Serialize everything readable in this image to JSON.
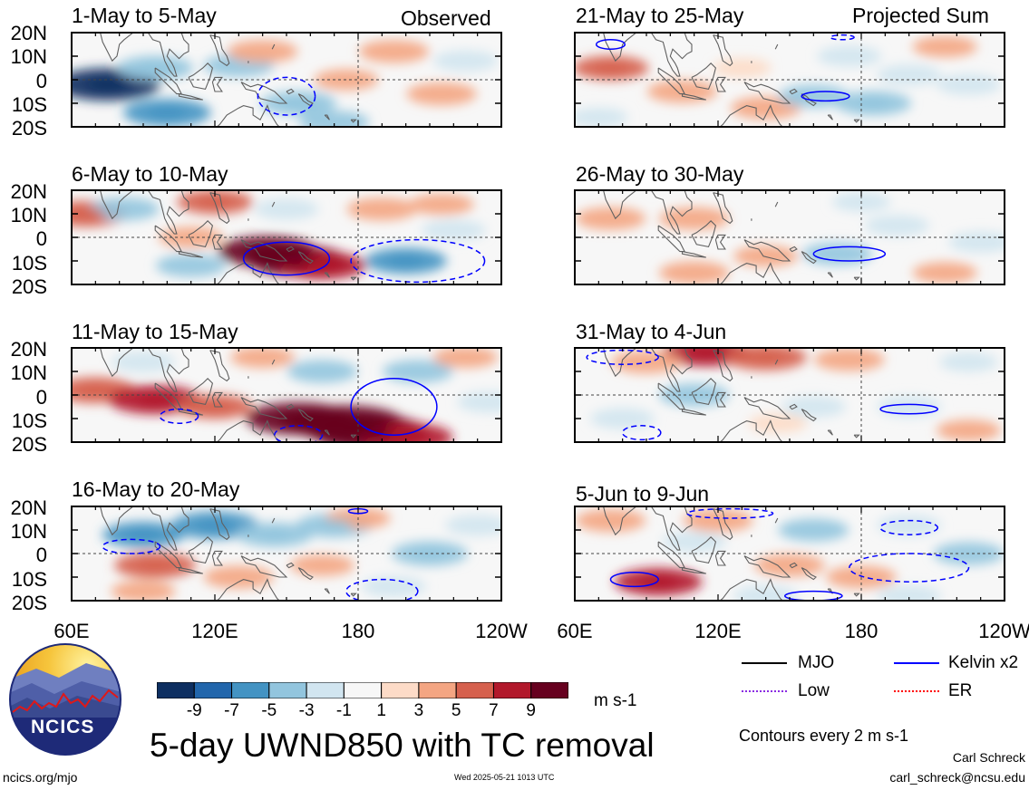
{
  "header": {
    "observed_label": "Observed",
    "projected_label": "Projected Sum"
  },
  "chart_data": {
    "type": "heatmap",
    "title": "5-day UWND850 with TC removal",
    "units": "m s-1",
    "lat_ticks": [
      "20N",
      "10N",
      "0",
      "10S",
      "20S"
    ],
    "lon_ticks": [
      "60E",
      "120E",
      "180",
      "120W"
    ],
    "lat_range": [
      -20,
      20
    ],
    "lon_range": [
      60,
      240
    ],
    "colorbar": {
      "labels": [
        "-9",
        "-7",
        "-5",
        "-3",
        "-1",
        "1",
        "3",
        "5",
        "7",
        "9"
      ],
      "colors": [
        "#0d2f61",
        "#2166ac",
        "#4393c3",
        "#92c5de",
        "#d1e5f0",
        "#f7f7f7",
        "#fddbc7",
        "#f4a582",
        "#d6604d",
        "#b2182b",
        "#67001f"
      ]
    },
    "panels": [
      {
        "period": "1-May to 5-May",
        "column": "observed",
        "anomalies": [
          [
            75,
            -2,
            -10
          ],
          [
            95,
            5,
            -5
          ],
          [
            100,
            -14,
            -7
          ],
          [
            155,
            -10,
            -5
          ],
          [
            130,
            6,
            -4
          ],
          [
            140,
            12,
            4
          ],
          [
            195,
            12,
            4
          ],
          [
            215,
            -6,
            4
          ],
          [
            225,
            8,
            -3
          ],
          [
            175,
            0,
            3
          ],
          [
            170,
            -18,
            -4
          ]
        ],
        "contours": [
          {
            "lon": 150,
            "lat": -7,
            "rx": 12,
            "ry": 8,
            "style": "dashed"
          }
        ]
      },
      {
        "period": "6-May to 10-May",
        "column": "observed",
        "anomalies": [
          [
            66,
            10,
            6
          ],
          [
            82,
            12,
            -4
          ],
          [
            110,
            0,
            3
          ],
          [
            142,
            -6,
            9
          ],
          [
            155,
            -10,
            9
          ],
          [
            165,
            -12,
            7
          ],
          [
            120,
            15,
            5
          ],
          [
            190,
            12,
            4
          ],
          [
            215,
            14,
            3
          ],
          [
            110,
            -12,
            -4
          ],
          [
            200,
            -10,
            -6
          ],
          [
            220,
            3,
            -3
          ],
          [
            150,
            12,
            -3
          ]
        ],
        "contours": [
          {
            "lon": 150,
            "lat": -9,
            "rx": 18,
            "ry": 7,
            "style": "solid"
          },
          {
            "lon": 205,
            "lat": -10,
            "rx": 28,
            "ry": 9,
            "style": "dashed"
          }
        ]
      },
      {
        "period": "11-May to 15-May",
        "column": "observed",
        "anomalies": [
          [
            70,
            2,
            6
          ],
          [
            95,
            -2,
            8
          ],
          [
            120,
            -5,
            5
          ],
          [
            155,
            -10,
            10
          ],
          [
            175,
            -12,
            12
          ],
          [
            185,
            -16,
            12
          ],
          [
            200,
            -18,
            8
          ],
          [
            165,
            10,
            -4
          ],
          [
            205,
            10,
            -4
          ],
          [
            90,
            14,
            -3
          ],
          [
            235,
            -3,
            -3
          ],
          [
            140,
            16,
            3
          ],
          [
            225,
            16,
            3
          ]
        ],
        "contours": [
          {
            "lon": 195,
            "lat": -5,
            "rx": 18,
            "ry": 12,
            "style": "solid"
          },
          {
            "lon": 105,
            "lat": -9,
            "rx": 8,
            "ry": 3,
            "style": "dashed"
          },
          {
            "lon": 155,
            "lat": -17,
            "rx": 10,
            "ry": 4,
            "style": "dashed"
          }
        ]
      },
      {
        "period": "16-May to 20-May",
        "column": "observed",
        "anomalies": [
          [
            90,
            8,
            -6
          ],
          [
            120,
            12,
            -7
          ],
          [
            145,
            8,
            -5
          ],
          [
            170,
            12,
            -5
          ],
          [
            210,
            0,
            -5
          ],
          [
            95,
            -5,
            6
          ],
          [
            130,
            -10,
            4
          ],
          [
            90,
            -16,
            3
          ],
          [
            180,
            15,
            3
          ],
          [
            165,
            -5,
            3
          ],
          [
            230,
            12,
            -3
          ],
          [
            195,
            -14,
            -3
          ]
        ],
        "contours": [
          {
            "lon": 85,
            "lat": 3,
            "rx": 12,
            "ry": 3,
            "style": "dashed"
          },
          {
            "lon": 180,
            "lat": 18,
            "rx": 4,
            "ry": 1,
            "style": "solid"
          },
          {
            "lon": 190,
            "lat": -16,
            "rx": 15,
            "ry": 5,
            "style": "dashed"
          }
        ]
      },
      {
        "period": "21-May to 25-May",
        "column": "projected",
        "anomalies": [
          [
            75,
            5,
            5
          ],
          [
            105,
            -5,
            4
          ],
          [
            140,
            -12,
            4
          ],
          [
            160,
            -7,
            -4
          ],
          [
            185,
            -10,
            -5
          ],
          [
            200,
            2,
            -3
          ],
          [
            225,
            -2,
            -3
          ],
          [
            175,
            10,
            -3
          ],
          [
            130,
            5,
            2
          ],
          [
            215,
            14,
            3
          ],
          [
            70,
            -16,
            -2
          ]
        ],
        "contours": [
          {
            "lon": 75,
            "lat": 15,
            "rx": 6,
            "ry": 2,
            "style": "solid"
          },
          {
            "lon": 165,
            "lat": -7,
            "rx": 10,
            "ry": 2,
            "style": "solid"
          },
          {
            "lon": 172,
            "lat": 18,
            "rx": 5,
            "ry": 1,
            "style": "dashed"
          }
        ]
      },
      {
        "period": "26-May to 30-May",
        "column": "projected",
        "anomalies": [
          [
            75,
            8,
            4
          ],
          [
            110,
            8,
            4
          ],
          [
            170,
            -7,
            -4
          ],
          [
            195,
            5,
            -3
          ],
          [
            230,
            -2,
            -3
          ],
          [
            140,
            -8,
            3
          ],
          [
            110,
            -15,
            4
          ],
          [
            215,
            -15,
            3
          ],
          [
            180,
            15,
            -2
          ]
        ],
        "contours": [
          {
            "lon": 175,
            "lat": -7,
            "rx": 15,
            "ry": 3,
            "style": "solid"
          }
        ]
      },
      {
        "period": "31-May to 4-Jun",
        "column": "projected",
        "anomalies": [
          [
            115,
            18,
            7
          ],
          [
            140,
            16,
            6
          ],
          [
            90,
            14,
            4
          ],
          [
            175,
            15,
            4
          ],
          [
            110,
            0,
            -4
          ],
          [
            160,
            -5,
            -3
          ],
          [
            200,
            -5,
            -3
          ],
          [
            80,
            -10,
            -3
          ],
          [
            145,
            -12,
            2
          ],
          [
            225,
            -15,
            3
          ],
          [
            225,
            14,
            -2
          ]
        ],
        "contours": [
          {
            "lon": 200,
            "lat": -6,
            "rx": 12,
            "ry": 2,
            "style": "solid"
          },
          {
            "lon": 80,
            "lat": 16,
            "rx": 15,
            "ry": 3,
            "style": "dashed"
          },
          {
            "lon": 88,
            "lat": -16,
            "rx": 8,
            "ry": 3,
            "style": "dashed"
          }
        ]
      },
      {
        "period": "5-Jun to 9-Jun",
        "column": "projected",
        "anomalies": [
          [
            75,
            14,
            4
          ],
          [
            120,
            14,
            4
          ],
          [
            95,
            -12,
            7
          ],
          [
            150,
            -5,
            4
          ],
          [
            180,
            -10,
            4
          ],
          [
            110,
            5,
            -3
          ],
          [
            160,
            10,
            -4
          ],
          [
            200,
            12,
            -3
          ],
          [
            225,
            0,
            -4
          ],
          [
            200,
            -18,
            -3
          ],
          [
            140,
            -18,
            -3
          ]
        ],
        "contours": [
          {
            "lon": 85,
            "lat": -11,
            "rx": 10,
            "ry": 3,
            "style": "solid"
          },
          {
            "lon": 200,
            "lat": -6,
            "rx": 25,
            "ry": 6,
            "style": "dashed"
          },
          {
            "lon": 200,
            "lat": 11,
            "rx": 12,
            "ry": 3,
            "style": "dashed"
          },
          {
            "lon": 125,
            "lat": 17,
            "rx": 18,
            "ry": 2,
            "style": "dashed"
          },
          {
            "lon": 160,
            "lat": -18,
            "rx": 12,
            "ry": 2,
            "style": "solid"
          }
        ]
      }
    ]
  },
  "legend": {
    "items": [
      {
        "label": "MJO",
        "color": "#000000"
      },
      {
        "label": "Kelvin x2",
        "color": "#0000ff"
      },
      {
        "label": "Low",
        "color": "#8a2be2"
      },
      {
        "label": "ER",
        "color": "#ff0000"
      }
    ],
    "contour_note": "Contours every 2 m s-1"
  },
  "logo": {
    "text": "NCICS"
  },
  "footer": {
    "url": "ncics.org/mjo",
    "timestamp": "Wed 2025-05-21 1013 UTC",
    "author": "Carl Schreck",
    "email": "carl_schreck@ncsu.edu"
  }
}
